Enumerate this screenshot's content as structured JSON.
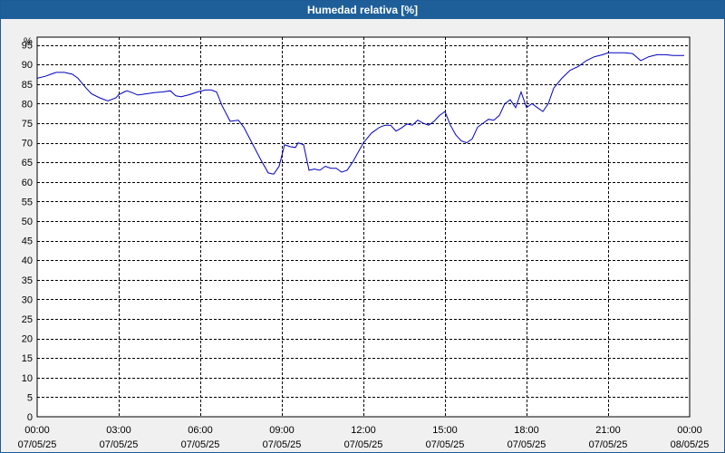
{
  "window": {
    "title": "Humedad relativa [%]"
  },
  "chart_data": {
    "type": "line",
    "title": "Humedad relativa [%]",
    "ylabel": "%",
    "xlabel": "",
    "ylim": [
      0,
      97
    ],
    "xlim": [
      0,
      24
    ],
    "grid": true,
    "line_color": "#0000c0",
    "y_ticks": [
      "0",
      "5",
      "10",
      "15",
      "20",
      "25",
      "30",
      "35",
      "40",
      "45",
      "50",
      "55",
      "60",
      "65",
      "70",
      "75",
      "80",
      "85",
      "90",
      "95"
    ],
    "x_ticks": [
      {
        "time": "00:00",
        "date": "07/05/25"
      },
      {
        "time": "03:00",
        "date": "07/05/25"
      },
      {
        "time": "06:00",
        "date": "07/05/25"
      },
      {
        "time": "09:00",
        "date": "07/05/25"
      },
      {
        "time": "12:00",
        "date": "07/05/25"
      },
      {
        "time": "15:00",
        "date": "07/05/25"
      },
      {
        "time": "18:00",
        "date": "07/05/25"
      },
      {
        "time": "21:00",
        "date": "07/05/25"
      },
      {
        "time": "00:00",
        "date": "08/05/25"
      }
    ],
    "series": [
      {
        "x": [
          0.0,
          0.3,
          0.5,
          0.7,
          1.0,
          1.3,
          1.5,
          1.8,
          2.0,
          2.3,
          2.6,
          2.9,
          3.0,
          3.2,
          3.3,
          3.5,
          3.7,
          4.0,
          4.3,
          4.6,
          4.9,
          5.1,
          5.3,
          5.6,
          5.9,
          6.2,
          6.4,
          6.6,
          6.8,
          7.1,
          7.4,
          7.6,
          7.9,
          8.2,
          8.5,
          8.7,
          8.9,
          9.1,
          9.3,
          9.5,
          9.6,
          9.8,
          10.0,
          10.2,
          10.4,
          10.6,
          10.8,
          11.0,
          11.2,
          11.4,
          11.6,
          11.8,
          12.0,
          12.3,
          12.6,
          12.8,
          13.0,
          13.2,
          13.4,
          13.6,
          13.8,
          14.0,
          14.2,
          14.4,
          14.6,
          14.8,
          15.0,
          15.2,
          15.4,
          15.6,
          15.8,
          16.0,
          16.2,
          16.4,
          16.6,
          16.8,
          17.0,
          17.2,
          17.4,
          17.6,
          17.8,
          18.0,
          18.2,
          18.4,
          18.6,
          18.8,
          19.0,
          19.3,
          19.6,
          19.9,
          20.2,
          20.5,
          20.8,
          21.0,
          21.3,
          21.6,
          21.9,
          22.2,
          22.5,
          22.8,
          23.1,
          23.4,
          23.8
        ],
        "y": [
          86.5,
          87.0,
          87.5,
          88.0,
          88.0,
          87.5,
          86.5,
          84.0,
          82.5,
          81.5,
          80.7,
          81.5,
          82.3,
          83.0,
          83.3,
          82.8,
          82.2,
          82.5,
          82.8,
          83.0,
          83.3,
          82.0,
          81.8,
          82.3,
          83.0,
          83.5,
          83.5,
          83.0,
          79.5,
          75.5,
          75.8,
          74.0,
          70.0,
          66.0,
          62.3,
          62.0,
          64.0,
          69.5,
          69.0,
          68.8,
          70.0,
          69.5,
          63.0,
          63.3,
          63.0,
          64.0,
          63.5,
          63.5,
          62.5,
          63.0,
          65.0,
          67.5,
          70.0,
          72.5,
          74.0,
          74.5,
          74.5,
          73.0,
          73.8,
          74.8,
          74.5,
          75.8,
          75.0,
          74.5,
          75.5,
          77.0,
          78.0,
          74.5,
          72.0,
          70.5,
          70.0,
          71.0,
          74.0,
          75.0,
          76.0,
          75.8,
          77.0,
          80.0,
          81.0,
          79.0,
          83.0,
          79.0,
          80.0,
          79.0,
          78.0,
          80.0,
          84.0,
          86.5,
          88.5,
          89.5,
          91.0,
          92.0,
          92.5,
          93.0,
          93.0,
          93.0,
          92.8,
          91.0,
          92.0,
          92.5,
          92.5,
          92.3,
          92.3
        ]
      }
    ]
  }
}
